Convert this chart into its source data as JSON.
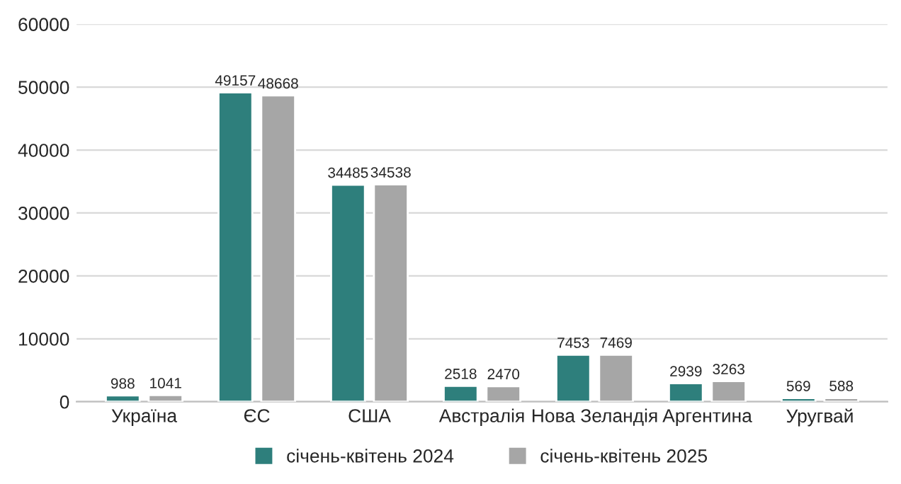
{
  "chart_data": {
    "type": "bar",
    "categories": [
      "Україна",
      "ЄС",
      "США",
      "Австралія",
      "Нова Зеландія",
      "Аргентина",
      "Уругвай"
    ],
    "series": [
      {
        "name": "січень-квітень 2024",
        "color": "#2e7f7c",
        "values": [
          988,
          49157,
          34485,
          2518,
          7453,
          2939,
          569
        ]
      },
      {
        "name": "січень-квітень 2025",
        "color": "#a6a6a6",
        "values": [
          1041,
          48668,
          34538,
          2470,
          7469,
          3263,
          588
        ]
      }
    ],
    "ylim": [
      0,
      60000
    ],
    "yticks": [
      0,
      10000,
      20000,
      30000,
      40000,
      50000,
      60000
    ],
    "grid": "y",
    "legend": "bottom",
    "data_labels": true
  }
}
